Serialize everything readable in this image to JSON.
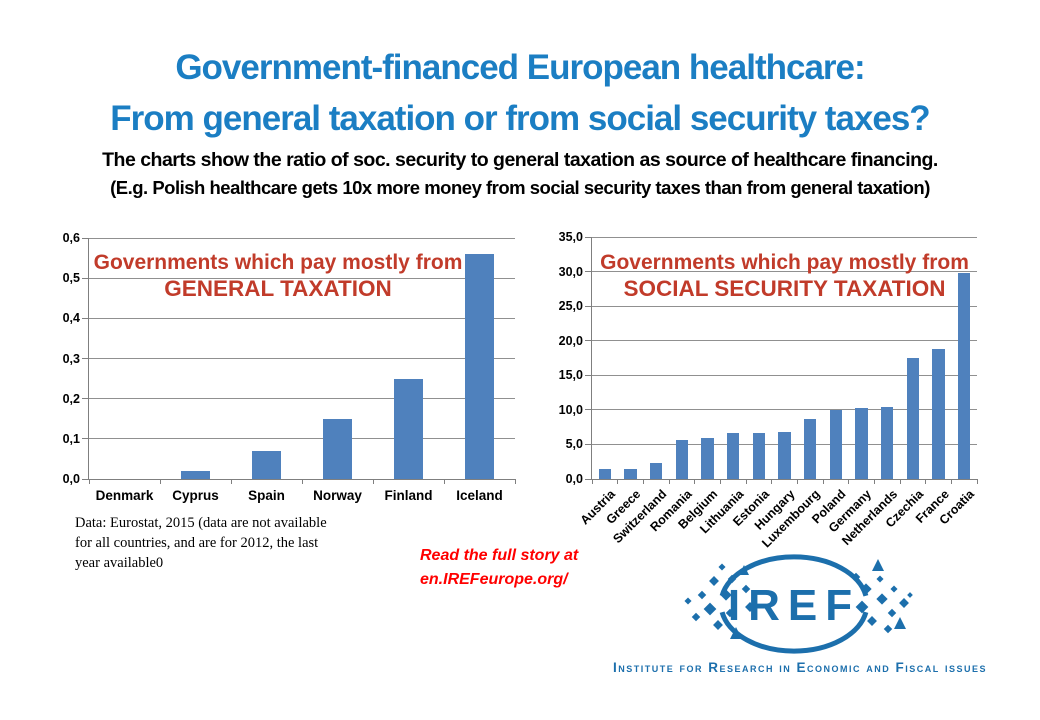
{
  "title": {
    "line1": "Government-financed European healthcare:",
    "line2": "From general taxation or from social security taxes?"
  },
  "subtitle": {
    "line1": "The charts show the ratio of soc. security to general taxation as source of healthcare financing.",
    "line2": "(E.g. Polish healthcare gets 10x more money from social security taxes than from general taxation)"
  },
  "note": {
    "line1": "Data: Eurostat, 2015 (data are not available",
    "line2": "for all countries, and are for 2012, the last",
    "line3": "year available0"
  },
  "link": {
    "line1": "Read the full story at",
    "line2": "en.IREFeurope.org/"
  },
  "logo": {
    "text": "IREF",
    "tagline": "Institute for Research in Economic and Fiscal issues"
  },
  "colors": {
    "title_blue": "#1B7EC3",
    "heading_red": "#C13B2A",
    "link_red": "#FF0000",
    "bar_blue": "#4F81BD",
    "logo_blue": "#1C6FAC"
  },
  "chart_data": [
    {
      "type": "bar",
      "heading": {
        "line1": "Governments which pay mostly from",
        "line2": "GENERAL TAXATION"
      },
      "categories": [
        "Denmark",
        "Cyprus",
        "Spain",
        "Norway",
        "Finland",
        "Iceland"
      ],
      "values": [
        0.0,
        0.02,
        0.07,
        0.15,
        0.25,
        0.56
      ],
      "ylabel": "",
      "xlabel": "",
      "ylim": [
        0,
        0.6
      ],
      "ystep": 0.1,
      "decimals": 1,
      "grid": true,
      "legend": false,
      "rotate_labels": false,
      "bar_frac": 0.42
    },
    {
      "type": "bar",
      "heading": {
        "line1": "Governments which pay mostly from",
        "line2": "SOCIAL SECURITY TAXATION"
      },
      "categories": [
        "Austria",
        "Greece",
        "Switzerland",
        "Romania",
        "Belgium",
        "Lithuania",
        "Estonia",
        "Hungary",
        "Luxembourg",
        "Poland",
        "Germany",
        "Netherlands",
        "Czechia",
        "France",
        "Croatia"
      ],
      "values": [
        1.5,
        1.5,
        2.3,
        5.7,
        6.0,
        6.6,
        6.6,
        6.8,
        8.7,
        10.0,
        10.2,
        10.4,
        17.5,
        18.8,
        29.8
      ],
      "ylabel": "",
      "xlabel": "",
      "ylim": [
        0,
        35
      ],
      "ystep": 5,
      "decimals": 1,
      "grid": true,
      "legend": false,
      "rotate_labels": true,
      "bar_frac": 0.47
    }
  ]
}
